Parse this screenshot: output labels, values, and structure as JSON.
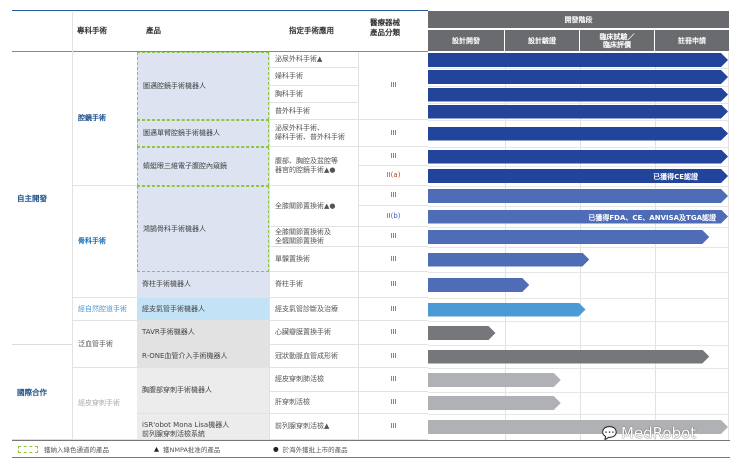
{
  "header": {
    "specialty": "專科手術",
    "product": "產品",
    "application": "指定手術應用",
    "classification": "醫療器械\n產品分類",
    "stage_group": "開發階段",
    "stages": [
      "設計開發",
      "設計驗證",
      "臨床試驗／\n臨床評價",
      "註冊申請"
    ]
  },
  "categories": [
    "自主開發",
    "國際合作"
  ],
  "specialties": [
    "腔鏡手術",
    "骨科手術",
    "經自然腔道手術",
    "泛血管手術",
    "經皮穿刺手術"
  ],
  "products": [
    "圖邁腔鏡手術機器人",
    "圖邁單臂腔鏡手術機器人",
    "蜻蜓眼三維電子腹腔內窺鏡",
    "鴻鵠骨科手術機器人",
    "脊柱手術機器人",
    "經支氣管手術機器人",
    "TAVR手術機器人",
    "R-ONE血管介入手術機器人",
    "胸腹部穿刺手術機器人",
    "iSR'obot Mona Lisa機器人\n前列腺穿刺活檢系統"
  ],
  "applications": [
    "泌尿外科手術▲",
    "婦科手術",
    "胸科手術",
    "普外科手術",
    "泌尿外科手術、\n婦科手術、普外科手術",
    "腹部、胸腔及盆腔等\n器官的腔鏡手術▲●",
    "全膝關節置換術▲●",
    "全膝關節置換術及\n全髖關節置換術",
    "單髁置換術",
    "脊柱手術",
    "經支氣管診斷及治療",
    "心臟瓣膜置換手術",
    "冠狀動脈血管成形術",
    "經皮穿刺肺活檢",
    "肝穿刺活檢",
    "前列腺穿刺活檢▲"
  ],
  "classes": [
    "III",
    "III",
    "III",
    "II(a)",
    "III",
    "II(b)",
    "III",
    "III",
    "III",
    "III",
    "III",
    "III",
    "III",
    "III",
    "III"
  ],
  "legend": [
    "獲納入綠色通道的產品",
    "獲NMPA批准的產品",
    "於海外獲批上市的產品"
  ],
  "watermark": "MedRobot",
  "colors": {
    "laparoscopic": "#22449a",
    "orthopedic": "#4f6db6",
    "bronchial": "#4a9bd5",
    "vascular": "#76777a",
    "percutaneous": "#b0b1b4",
    "header": "#6a6b6e",
    "product_bg": "#dde3f1",
    "green_channel": "#8cc63f"
  },
  "chart_data": {
    "type": "bar",
    "orientation": "horizontal",
    "axis_categories": [
      "設計開發",
      "設計驗證",
      "臨床試驗／臨床評價",
      "註冊申請"
    ],
    "xlim": [
      0,
      4
    ],
    "rows": [
      {
        "product": "圖邁腔鏡手術機器人",
        "application": "泌尿外科手術",
        "progress": 4,
        "color": "laparoscopic"
      },
      {
        "product": "圖邁腔鏡手術機器人",
        "application": "婦科手術",
        "progress": 4,
        "color": "laparoscopic"
      },
      {
        "product": "圖邁腔鏡手術機器人",
        "application": "胸科手術",
        "progress": 4,
        "color": "laparoscopic"
      },
      {
        "product": "圖邁腔鏡手術機器人",
        "application": "普外科手術",
        "progress": 4,
        "color": "laparoscopic"
      },
      {
        "product": "圖邁單臂腔鏡手術機器人",
        "progress": 4,
        "color": "laparoscopic"
      },
      {
        "product": "蜻蜓眼三維電子腹腔內窺鏡",
        "class": "III",
        "progress": 4,
        "color": "laparoscopic"
      },
      {
        "product": "蜻蜓眼三維電子腹腔內窺鏡",
        "class": "II(a)",
        "progress": 4,
        "color": "laparoscopic",
        "label": "已獲得CE認證"
      },
      {
        "product": "鴻鵠骨科手術機器人",
        "class": "III",
        "progress": 4,
        "color": "orthopedic"
      },
      {
        "product": "鴻鵠骨科手術機器人",
        "class": "II(b)",
        "progress": 4,
        "color": "orthopedic",
        "label": "已獲得FDA、CE、ANVISA及TGA認證"
      },
      {
        "product": "鴻鵠骨科手術機器人",
        "application": "全膝關節置換術及全髖關節置換術",
        "progress": 3.75,
        "color": "orthopedic"
      },
      {
        "product": "鴻鵠骨科手術機器人",
        "application": "單髁置換術",
        "progress": 2.15,
        "color": "orthopedic"
      },
      {
        "product": "脊柱手術機器人",
        "progress": 1.35,
        "color": "orthopedic"
      },
      {
        "product": "經支氣管手術機器人",
        "progress": 2.1,
        "color": "bronchial"
      },
      {
        "product": "TAVR手術機器人",
        "progress": 0.9,
        "color": "vascular"
      },
      {
        "product": "R-ONE血管介入手術機器人",
        "progress": 3.75,
        "color": "vascular"
      },
      {
        "product": "胸腹部穿刺手術機器人",
        "application": "經皮穿刺肺活檢",
        "progress": 1.77,
        "color": "percutaneous"
      },
      {
        "product": "胸腹部穿刺手術機器人",
        "application": "肝穿刺活檢",
        "progress": 1.77,
        "color": "percutaneous"
      },
      {
        "product": "iSR'obot Mona Lisa機器人前列腺穿刺活檢系統",
        "progress": 4,
        "color": "percutaneous"
      }
    ]
  }
}
